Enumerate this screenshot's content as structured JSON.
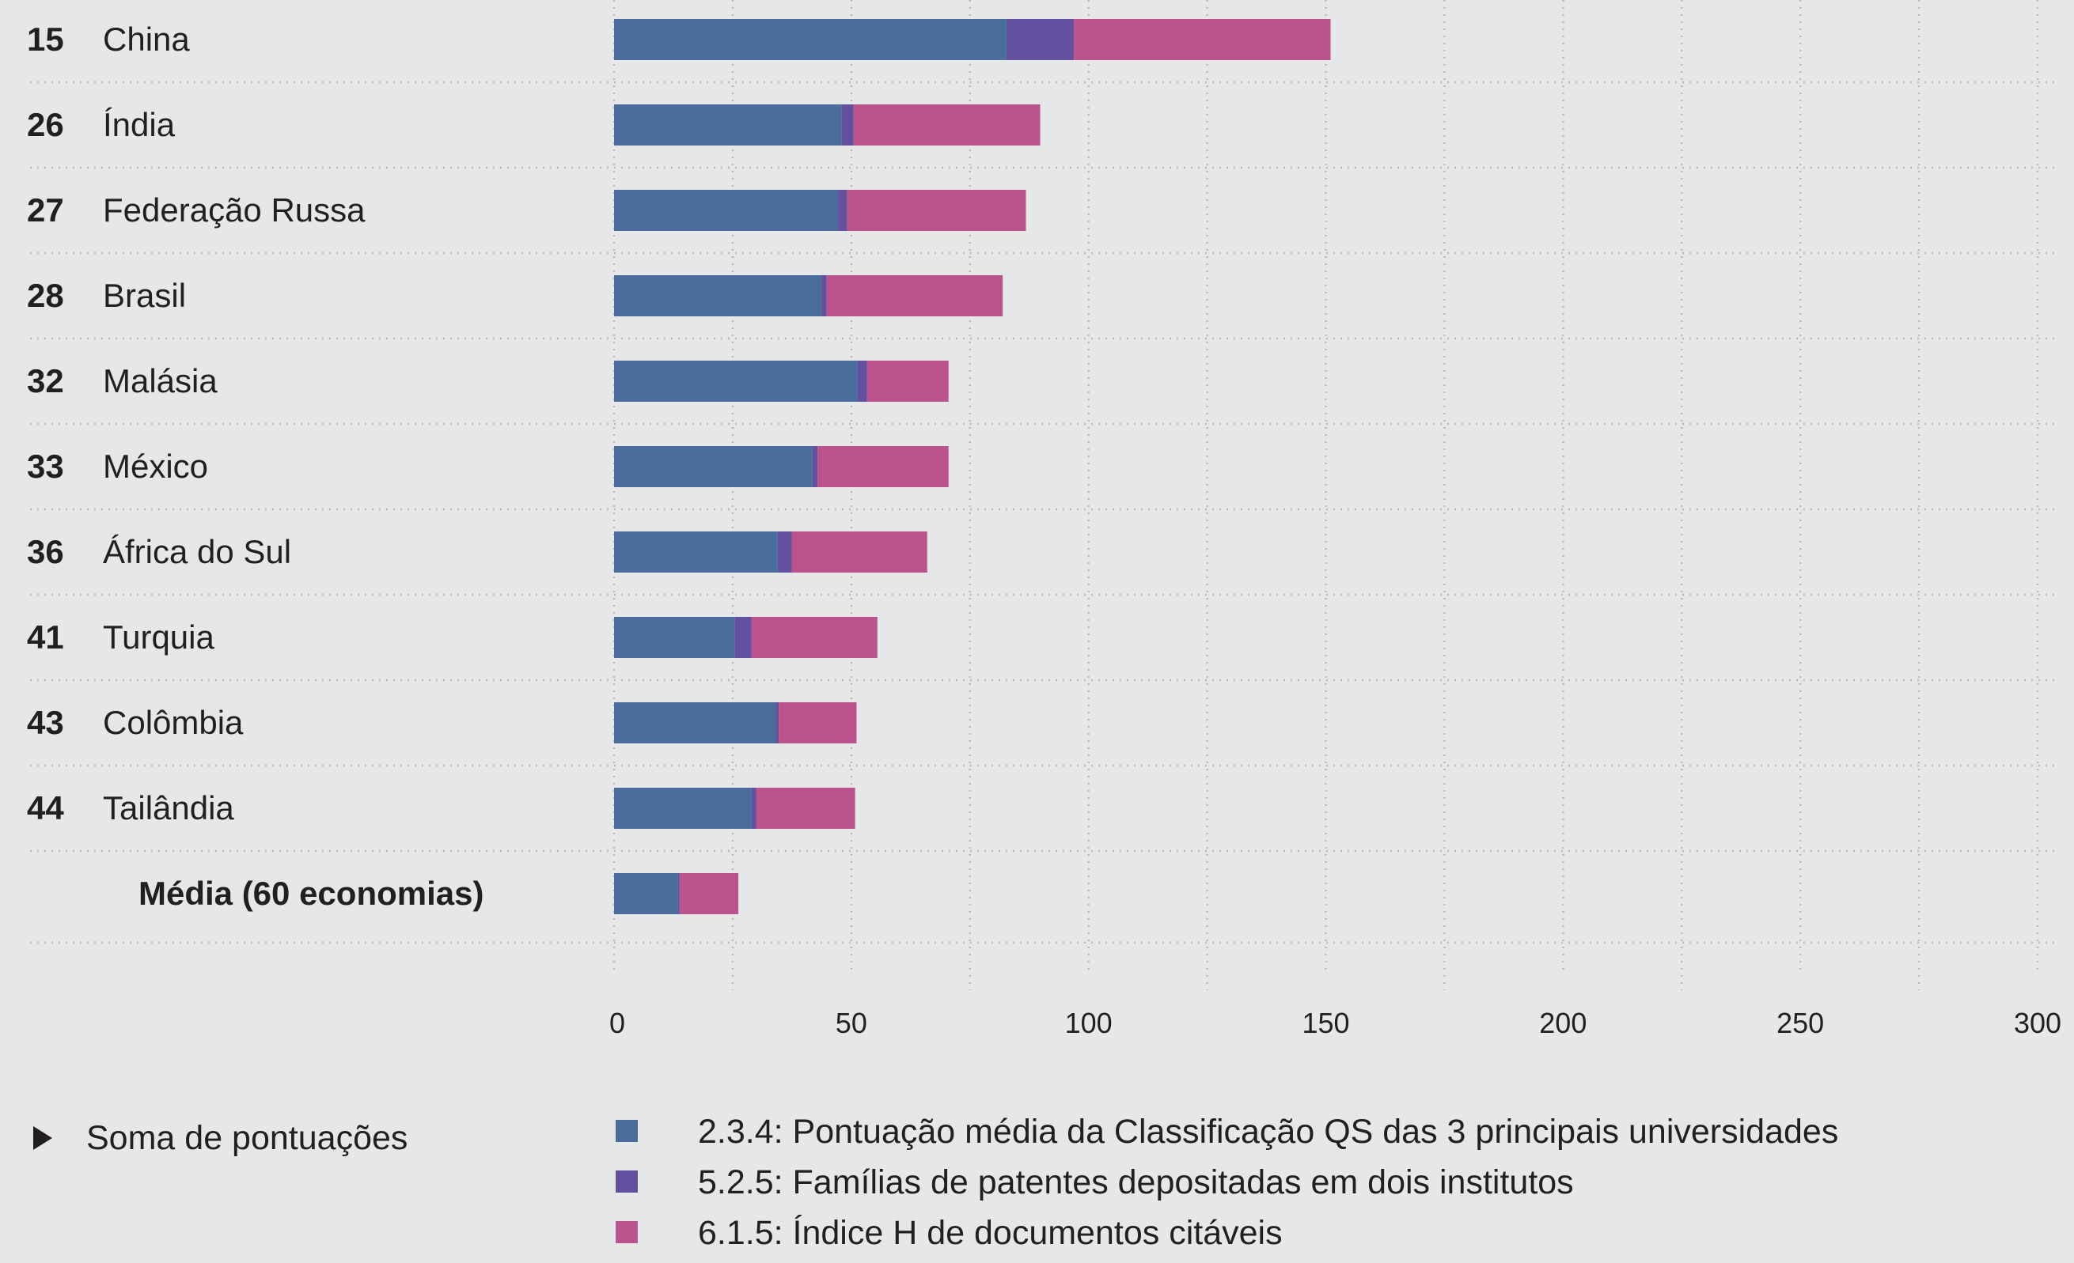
{
  "chart_data": {
    "type": "bar",
    "orientation": "horizontal",
    "stacked": true,
    "grid": true,
    "xlim": [
      0,
      300
    ],
    "x_ticks": [
      "0",
      "50",
      "100",
      "150",
      "200",
      "250",
      "300"
    ],
    "categories": [
      {
        "rank": "15",
        "name": "China"
      },
      {
        "rank": "26",
        "name": "Índia"
      },
      {
        "rank": "27",
        "name": "Federação Russa"
      },
      {
        "rank": "28",
        "name": "Brasil"
      },
      {
        "rank": "32",
        "name": "Malásia"
      },
      {
        "rank": "33",
        "name": "México"
      },
      {
        "rank": "36",
        "name": "África do Sul"
      },
      {
        "rank": "41",
        "name": "Turquia"
      },
      {
        "rank": "43",
        "name": "Colômbia"
      },
      {
        "rank": "44",
        "name": "Tailândia"
      },
      {
        "rank": "",
        "name": "Média (60 economias)",
        "average": true
      }
    ],
    "series": [
      {
        "name": "2.3.4: Pontuação média da Classificação QS das 3 principais universidades",
        "color": "#4a6e9c",
        "values": [
          82.7,
          47.9,
          47.2,
          43.7,
          51.3,
          41.8,
          34.5,
          25.4,
          34.1,
          29.0,
          13.5
        ]
      },
      {
        "name": "5.2.5: Famílias de patentes depositadas em dois institutos",
        "color": "#63509f",
        "values": [
          14.2,
          2.6,
          1.9,
          1.1,
          2.0,
          1.1,
          3.0,
          3.6,
          0.6,
          1.0,
          0.3
        ]
      },
      {
        "name": "6.1.5: Índice H de documentos citáveis",
        "color": "#bb548d",
        "values": [
          54.1,
          39.3,
          37.7,
          37.1,
          17.2,
          27.6,
          28.5,
          26.5,
          16.4,
          20.8,
          12.4
        ]
      }
    ],
    "footer_label": "Soma de pontuações",
    "footer_icon": "play-triangle-icon"
  }
}
